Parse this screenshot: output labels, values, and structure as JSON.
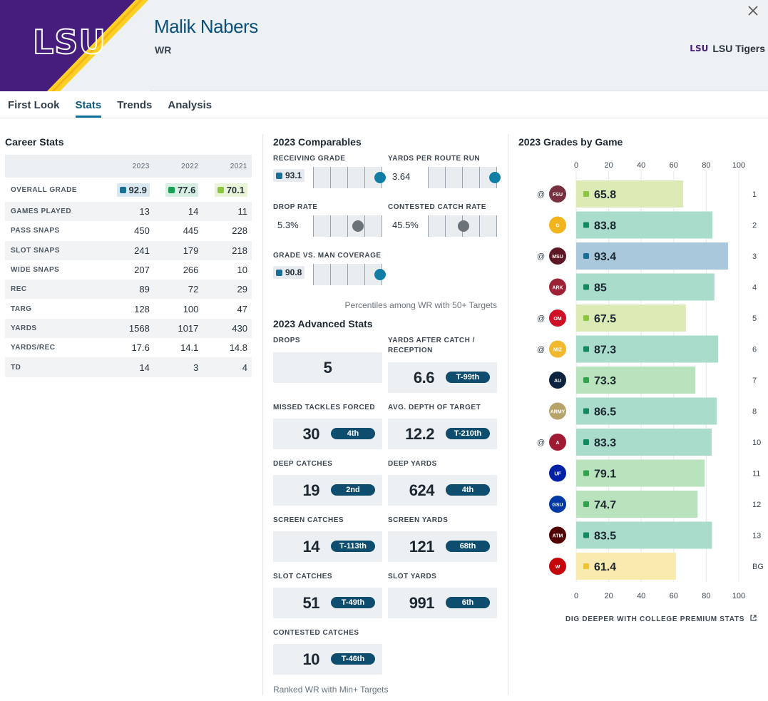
{
  "player": {
    "name": "Malik Nabers",
    "position": "WR",
    "team": "LSU Tigers",
    "team_logo_text": "LSU"
  },
  "tabs": [
    "First Look",
    "Stats",
    "Trends",
    "Analysis"
  ],
  "active_tab": "Stats",
  "colors": {
    "purple": "#461d7c",
    "gold": "#fdd023",
    "blue_grade": "#1a6f96",
    "green_grade": "#19a058",
    "light_green_grade": "#8cc63f",
    "yellow_grade": "#f1c232"
  },
  "career": {
    "title": "Career Stats",
    "years": [
      "2023",
      "2022",
      "2021"
    ],
    "grades": {
      "label": "OVERALL GRADE",
      "values": [
        {
          "v": "92.9",
          "color": "#1a6f96",
          "bg": "#d9e8f0"
        },
        {
          "v": "77.6",
          "color": "#19a058",
          "bg": "#d6efe2"
        },
        {
          "v": "70.1",
          "color": "#8cc63f",
          "bg": "#e9f4d8"
        }
      ]
    },
    "rows": [
      {
        "label": "GAMES PLAYED",
        "values": [
          "13",
          "14",
          "11"
        ]
      },
      {
        "label": "PASS SNAPS",
        "values": [
          "450",
          "445",
          "228"
        ]
      },
      {
        "label": "SLOT SNAPS",
        "values": [
          "241",
          "179",
          "218"
        ]
      },
      {
        "label": "WIDE SNAPS",
        "values": [
          "207",
          "266",
          "10"
        ]
      },
      {
        "label": "REC",
        "values": [
          "89",
          "72",
          "29"
        ]
      },
      {
        "label": "TARG",
        "values": [
          "128",
          "100",
          "47"
        ]
      },
      {
        "label": "YARDS",
        "values": [
          "1568",
          "1017",
          "430"
        ]
      },
      {
        "label": "YARDS/REC",
        "values": [
          "17.6",
          "14.1",
          "14.8"
        ]
      },
      {
        "label": "TD",
        "values": [
          "14",
          "3",
          "4"
        ]
      }
    ]
  },
  "comparables": {
    "title": "2023 Comparables",
    "metrics": [
      {
        "label": "RECEIVING GRADE",
        "value": "93.1",
        "chip": true,
        "percentile": 0.98,
        "dot_color": "#117fa5"
      },
      {
        "label": "YARDS PER ROUTE RUN",
        "value": "3.64",
        "chip": false,
        "percentile": 0.98,
        "dot_color": "#117fa5"
      },
      {
        "label": "DROP RATE",
        "value": "5.3%",
        "chip": false,
        "percentile": 0.66,
        "dot_color": "#6b7278"
      },
      {
        "label": "CONTESTED CATCH RATE",
        "value": "45.5%",
        "chip": false,
        "percentile": 0.52,
        "dot_color": "#6b7278"
      },
      {
        "label": "GRADE VS. MAN COVERAGE",
        "value": "90.8",
        "chip": true,
        "percentile": 0.98,
        "dot_color": "#117fa5"
      }
    ],
    "note": "Percentiles among WR with 50+ Targets"
  },
  "advanced": {
    "title": "2023 Advanced Stats",
    "cells": [
      {
        "label": "DROPS",
        "label2": "",
        "value": "5",
        "rank": ""
      },
      {
        "label": "YARDS AFTER CATCH /",
        "label2": "RECEPTION",
        "value": "6.6",
        "rank": "T-99th"
      },
      {
        "label": "MISSED TACKLES FORCED",
        "label2": "",
        "value": "30",
        "rank": "4th"
      },
      {
        "label": "AVG. DEPTH OF TARGET",
        "label2": "",
        "value": "12.2",
        "rank": "T-210th"
      },
      {
        "label": "DEEP CATCHES",
        "label2": "",
        "value": "19",
        "rank": "2nd"
      },
      {
        "label": "DEEP YARDS",
        "label2": "",
        "value": "624",
        "rank": "4th"
      },
      {
        "label": "SCREEN CATCHES",
        "label2": "",
        "value": "14",
        "rank": "T-113th"
      },
      {
        "label": "SCREEN YARDS",
        "label2": "",
        "value": "121",
        "rank": "68th"
      },
      {
        "label": "SLOT CATCHES",
        "label2": "",
        "value": "51",
        "rank": "T-49th"
      },
      {
        "label": "SLOT YARDS",
        "label2": "",
        "value": "991",
        "rank": "6th"
      },
      {
        "label": "CONTESTED CATCHES",
        "label2": "",
        "value": "10",
        "rank": "T-46th"
      }
    ],
    "note": "Ranked WR with Min+ Targets"
  },
  "chart_data": {
    "type": "bar",
    "orientation": "horizontal",
    "title": "2023 Grades by Game",
    "xlim": [
      0,
      100
    ],
    "ticks": [
      "0",
      "20",
      "40",
      "60",
      "80",
      "100"
    ],
    "categories": [
      "1",
      "2",
      "3",
      "4",
      "5",
      "6",
      "7",
      "8",
      "10",
      "11",
      "12",
      "13",
      "BG"
    ],
    "away": [
      true,
      false,
      true,
      false,
      true,
      true,
      false,
      false,
      true,
      false,
      false,
      false,
      false
    ],
    "opponents": [
      "Florida State",
      "Grambling State",
      "Mississippi State",
      "Arkansas",
      "Ole Miss",
      "Missouri",
      "Auburn",
      "Army",
      "Alabama",
      "Florida",
      "Georgia State",
      "Texas A&M",
      "Wisconsin"
    ],
    "opponent_abbr": [
      "FSU",
      "G",
      "MSU",
      "ARK",
      "OM",
      "MIZ",
      "AU",
      "ARMY",
      "A",
      "UF",
      "GSU",
      "ATM",
      "W"
    ],
    "values": [
      65.8,
      83.8,
      93.4,
      85,
      67.5,
      87.3,
      73.3,
      86.5,
      83.3,
      79.1,
      74.7,
      83.5,
      61.4
    ],
    "labels": [
      "65.8",
      "83.8",
      "93.4",
      "85",
      "67.5",
      "87.3",
      "73.3",
      "86.5",
      "83.3",
      "79.1",
      "74.7",
      "83.5",
      "61.4"
    ],
    "at_symbol": "@",
    "link_text": "DIG DEEPER WITH COLLEGE PREMIUM STATS"
  }
}
